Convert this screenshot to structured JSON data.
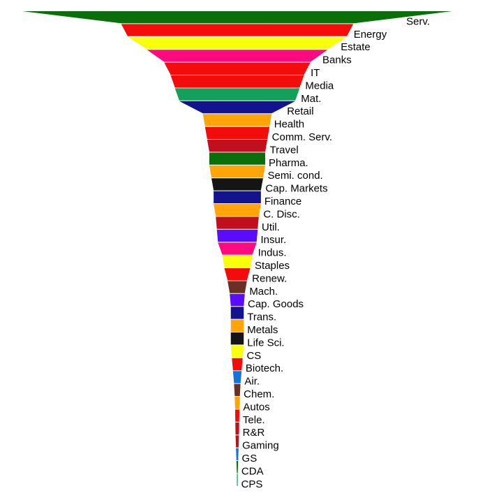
{
  "chart_data": {
    "type": "funnel",
    "title": "",
    "categories": [
      "Serv.",
      "Energy",
      "Estate",
      "Banks",
      "IT",
      "Media",
      "Mat.",
      "Retail",
      "Health",
      "Comm. Serv.",
      "Travel",
      "Pharma.",
      "Semi. cond.",
      "Cap. Markets",
      "Finance",
      "C. Disc.",
      "Util.",
      "Insur.",
      "Indus.",
      "Staples",
      "Renew.",
      "Mach.",
      "Cap. Goods",
      "Trans.",
      "Metals",
      "Life Sci.",
      "CS",
      "Biotech.",
      "Air.",
      "Chem.",
      "Autos",
      "Tele.",
      "R&R",
      "Gaming",
      "GS",
      "CDA",
      "CPS"
    ],
    "values": [
      100,
      54,
      51,
      42,
      34,
      31,
      29,
      27,
      16,
      15,
      14,
      13,
      13,
      12,
      11,
      11,
      10,
      9.5,
      9,
      7,
      6,
      4.5,
      3.5,
      3,
      3,
      3,
      3,
      2.5,
      2,
      1.5,
      1.2,
      1,
      0.9,
      0.8,
      0.6,
      0.4,
      0.2
    ],
    "colors": [
      "#0a6e0a",
      "#f20c0c",
      "#f7ff0c",
      "#ff0b7f",
      "#f20c0c",
      "#f20c0c",
      "#12a05a",
      "#11148c",
      "#ffa50a",
      "#f20c0c",
      "#c0101e",
      "#0a6e0a",
      "#ffa50a",
      "#151515",
      "#11148c",
      "#ffa50a",
      "#c0101e",
      "#5a0cff",
      "#ff0b7f",
      "#f7ff0c",
      "#f20c0c",
      "#6b3024",
      "#5a0cff",
      "#11148c",
      "#ffa50a",
      "#151515",
      "#f7ff0c",
      "#f20c0c",
      "#1272e0",
      "#6b3024",
      "#ffa50a",
      "#f20c0c",
      "#c0101e",
      "#c0101e",
      "#1272e0",
      "#0a6e0a",
      "#12a05a"
    ],
    "legend": "none",
    "grid": false
  }
}
